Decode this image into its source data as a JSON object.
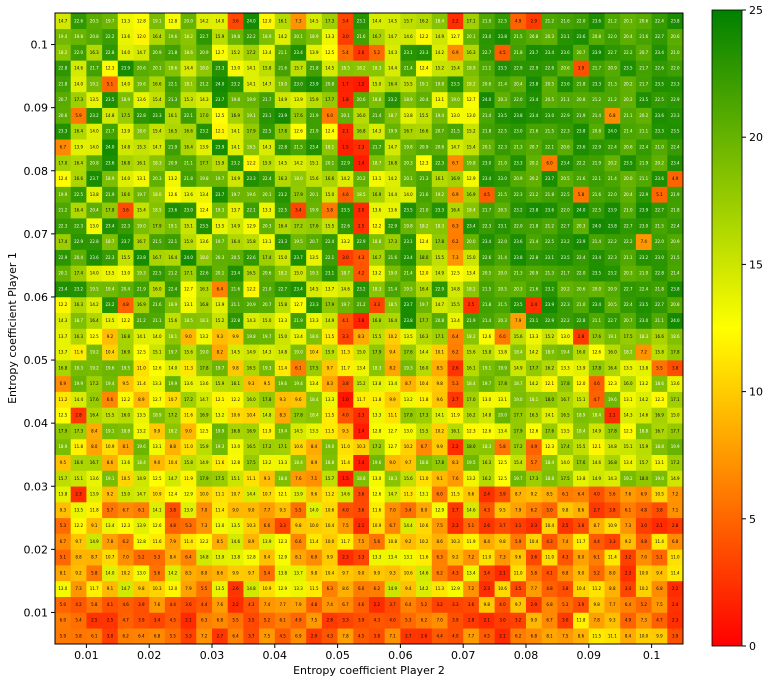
{
  "chart_data": {
    "type": "heatmap",
    "title": "",
    "xlabel": "Entropy coefficient Player 2",
    "ylabel": "Entropy coefficient Player 1",
    "xlim": [
      0.005,
      0.105
    ],
    "ylim": [
      0.005,
      0.105
    ],
    "x_ticks": [
      0.01,
      0.02,
      0.03,
      0.04,
      0.05,
      0.06,
      0.07,
      0.08,
      0.09,
      0.1
    ],
    "x_tick_labels": [
      "0.01",
      "0.02",
      "0.03",
      "0.04",
      "0.05",
      "0.06",
      "0.07",
      "0.08",
      "0.09",
      "0.1"
    ],
    "y_ticks": [
      0.01,
      0.02,
      0.03,
      0.04,
      0.05,
      0.06,
      0.07,
      0.08,
      0.09,
      0.1
    ],
    "y_tick_labels": [
      "0.01",
      "0.02",
      "0.03",
      "0.04",
      "0.05",
      "0.06",
      "0.07",
      "0.08",
      "0.09",
      "0.1"
    ],
    "colorbar": {
      "min": 0,
      "max": 25,
      "ticks": [
        0,
        5,
        10,
        15,
        20,
        25
      ],
      "tick_labels": [
        "0",
        "5",
        "10",
        "15",
        "20",
        "25"
      ],
      "colors": [
        "#ff0000",
        "#ffff00",
        "#008000"
      ]
    },
    "grid_size": [
      40,
      40
    ],
    "value_format": "one decimal",
    "note": "40x40 grid of values (rows: Player 1 coefficient, columns: Player 2 coefficient), each cell annotated with its value. Low values (red) near x=0.055 and in the bottom rows; high values (green) in the upper-right region."
  }
}
